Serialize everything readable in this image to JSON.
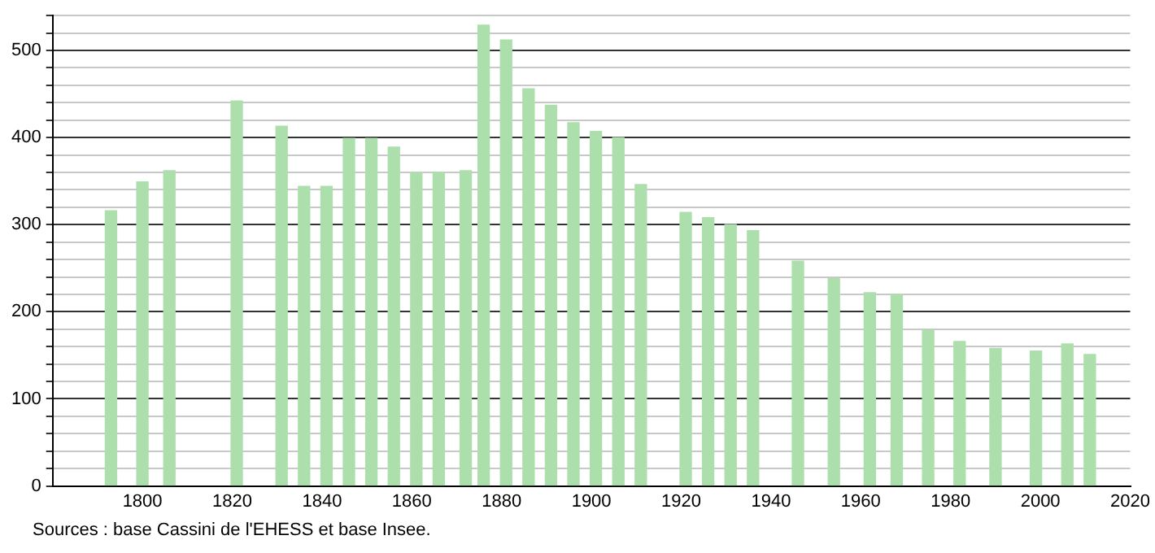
{
  "chart_data": {
    "type": "bar",
    "x": [
      1793,
      1800,
      1806,
      1821,
      1831,
      1836,
      1841,
      1846,
      1851,
      1856,
      1861,
      1866,
      1872,
      1876,
      1881,
      1886,
      1891,
      1896,
      1901,
      1906,
      1911,
      1921,
      1926,
      1931,
      1936,
      1946,
      1954,
      1962,
      1968,
      1975,
      1982,
      1990,
      1999,
      2006,
      2011
    ],
    "values": [
      316,
      349,
      362,
      442,
      413,
      344,
      344,
      399,
      399,
      389,
      360,
      360,
      362,
      529,
      512,
      456,
      437,
      417,
      407,
      400,
      346,
      314,
      308,
      300,
      293,
      258,
      238,
      222,
      220,
      179,
      166,
      158,
      155,
      163,
      151
    ],
    "color": "#addfad",
    "xlim": [
      1780,
      2020
    ],
    "xticks": [
      1800,
      1820,
      1840,
      1860,
      1880,
      1900,
      1920,
      1940,
      1960,
      1980,
      2000,
      2020
    ],
    "ylim": [
      0,
      540
    ],
    "yticks": [
      0,
      {
        "value": 20,
        "label": null
      },
      {
        "value": 40,
        "label": null
      },
      {
        "value": 60,
        "label": null
      },
      {
        "value": 80,
        "label": null
      },
      100,
      {
        "value": 120,
        "label": null
      },
      {
        "value": 140,
        "label": null
      },
      {
        "value": 160,
        "label": null
      },
      {
        "value": 180,
        "label": null
      },
      200,
      {
        "value": 220,
        "label": null
      },
      {
        "value": 240,
        "label": null
      },
      {
        "value": 260,
        "label": null
      },
      {
        "value": 280,
        "label": null
      },
      300,
      {
        "value": 320,
        "label": null
      },
      {
        "value": 340,
        "label": null
      },
      {
        "value": 360,
        "label": null
      },
      {
        "value": 380,
        "label": null
      },
      400,
      {
        "value": 420,
        "label": null
      },
      {
        "value": 440,
        "label": null
      },
      {
        "value": 460,
        "label": null
      },
      {
        "value": 480,
        "label": null
      },
      500,
      {
        "value": 520,
        "label": null
      },
      {
        "value": 540,
        "label": null
      }
    ],
    "grid": "y",
    "legend": false,
    "annotations": [
      "Sources : base Cassini de l'EHESS et base Insee."
    ]
  }
}
